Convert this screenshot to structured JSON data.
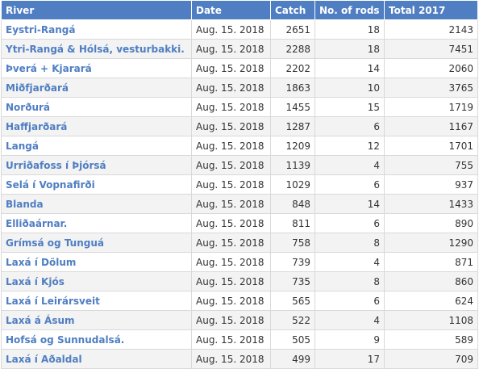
{
  "table": {
    "headers": [
      "River",
      "Date",
      "Catch",
      "No. of rods",
      "Total 2017"
    ],
    "rows": [
      {
        "river": "Eystri-Rangá",
        "date": "Aug. 15. 2018",
        "catch": "2651",
        "rods": "18",
        "total_2017": "2143"
      },
      {
        "river": "Ytri-Rangá & Hólsá, vesturbakki.",
        "date": "Aug. 15. 2018",
        "catch": "2288",
        "rods": "18",
        "total_2017": "7451"
      },
      {
        "river": "Þverá + Kjarará",
        "date": "Aug. 15. 2018",
        "catch": "2202",
        "rods": "14",
        "total_2017": "2060"
      },
      {
        "river": "Miðfjarðará",
        "date": "Aug. 15. 2018",
        "catch": "1863",
        "rods": "10",
        "total_2017": "3765"
      },
      {
        "river": "Norðurá",
        "date": "Aug. 15. 2018",
        "catch": "1455",
        "rods": "15",
        "total_2017": "1719"
      },
      {
        "river": "Haffjarðará",
        "date": "Aug. 15. 2018",
        "catch": "1287",
        "rods": "6",
        "total_2017": "1167"
      },
      {
        "river": "Langá",
        "date": "Aug. 15. 2018",
        "catch": "1209",
        "rods": "12",
        "total_2017": "1701"
      },
      {
        "river": "Urriðafoss í Þjórsá",
        "date": "Aug. 15. 2018",
        "catch": "1139",
        "rods": "4",
        "total_2017": "755"
      },
      {
        "river": "Selá í Vopnafirði",
        "date": "Aug. 15. 2018",
        "catch": "1029",
        "rods": "6",
        "total_2017": "937"
      },
      {
        "river": "Blanda",
        "date": "Aug. 15. 2018",
        "catch": "848",
        "rods": "14",
        "total_2017": "1433"
      },
      {
        "river": "Elliðaárnar.",
        "date": "Aug. 15. 2018",
        "catch": "811",
        "rods": "6",
        "total_2017": "890"
      },
      {
        "river": "Grímsá og Tunguá",
        "date": "Aug. 15. 2018",
        "catch": "758",
        "rods": "8",
        "total_2017": "1290"
      },
      {
        "river": "Laxá í Dölum",
        "date": "Aug. 15. 2018",
        "catch": "739",
        "rods": "4",
        "total_2017": "871"
      },
      {
        "river": "Laxá í Kjós",
        "date": "Aug. 15. 2018",
        "catch": "735",
        "rods": "8",
        "total_2017": "860"
      },
      {
        "river": "Laxá í Leirársveit",
        "date": "Aug. 15. 2018",
        "catch": "565",
        "rods": "6",
        "total_2017": "624"
      },
      {
        "river": "Laxá á Ásum",
        "date": "Aug. 15. 2018",
        "catch": "522",
        "rods": "4",
        "total_2017": "1108"
      },
      {
        "river": "Hofsá og Sunnudalsá.",
        "date": "Aug. 15. 2018",
        "catch": "505",
        "rods": "9",
        "total_2017": "589"
      },
      {
        "river": "Laxá í Aðaldal",
        "date": "Aug. 15. 2018",
        "catch": "499",
        "rods": "17",
        "total_2017": "709"
      }
    ]
  },
  "colors": {
    "header_bg": "#4f7ec2",
    "river_text": "#4f7ec2",
    "row_alt_bg": "#f3f3f3"
  }
}
